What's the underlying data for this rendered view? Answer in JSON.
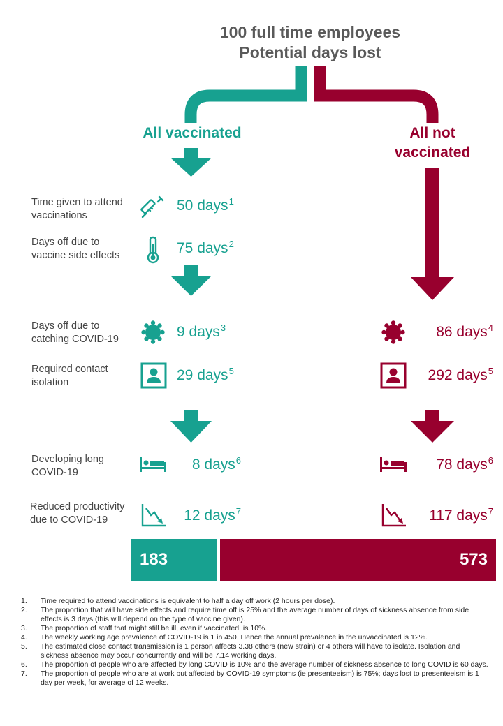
{
  "header": {
    "title_line1": "100 full time employees",
    "title_line2": "Potential days lost"
  },
  "vaccinated": {
    "heading": "All vaccinated",
    "color": "#17a190",
    "rows": [
      {
        "label": "Time given to attend vaccinations",
        "value": "50 days",
        "note": "1",
        "icon": "syringe-icon"
      },
      {
        "label": "Days off due to vaccine side effects",
        "value": "75 days",
        "note": "2",
        "icon": "thermometer-icon"
      },
      {
        "label": "Days off due to catching COVID-19",
        "value": "9 days",
        "note": "3",
        "icon": "virus-icon"
      },
      {
        "label": "Required contact isolation",
        "value": "29 days",
        "note": "5",
        "icon": "person-isolation-icon"
      },
      {
        "label": "Developing long COVID-19",
        "value": "8 days",
        "note": "6",
        "icon": "bed-icon"
      },
      {
        "label": "Reduced productivity due to COVID-19",
        "value": "12 days",
        "note": "7",
        "icon": "declining-chart-icon"
      }
    ],
    "total": "183"
  },
  "not_vaccinated": {
    "heading_line1": "All not",
    "heading_line2": "vaccinated",
    "color": "#98002e",
    "rows": [
      {
        "value": "86 days",
        "note": "4",
        "icon": "virus-icon"
      },
      {
        "value": "292 days",
        "note": "5",
        "icon": "person-isolation-icon"
      },
      {
        "value": "78 days",
        "note": "6",
        "icon": "bed-icon"
      },
      {
        "value": "117 days",
        "note": "7",
        "icon": "declining-chart-icon"
      }
    ],
    "total": "573"
  },
  "footnotes": [
    {
      "num": "1.",
      "text": "Time required to attend vaccinations is equivalent to half a day off work (2 hours per dose)."
    },
    {
      "num": "2.",
      "text": "The proportion that will have side effects and require time off is 25% and the average number of days of sickness absence from side effects is 3 days (this will depend on the type of vaccine given)."
    },
    {
      "num": "3.",
      "text": "The proportion of staff that might still be ill, even if vaccinated, is 10%."
    },
    {
      "num": "4.",
      "text": "The weekly working age prevalence of COVID-19 is 1 in 450. Hence the annual prevalence in the unvaccinated is 12%."
    },
    {
      "num": "5.",
      "text": "The estimated close contact transmission is 1 person affects 3.38 others (new strain) or 4 others will have to isolate. Isolation and sickness absence may occur concurrently and will be 7.14 working days."
    },
    {
      "num": "6.",
      "text": "The proportion of people who are affected by long COVID is 10%  and the average number of sickness absence to long COVID is 60 days."
    },
    {
      "num": "7.",
      "text": "The proportion of people who are at work but affected by COVID-19 symptoms (ie presenteeism) is 75%; days lost to presenteeism is 1 day per week, for average of 12 weeks."
    }
  ]
}
